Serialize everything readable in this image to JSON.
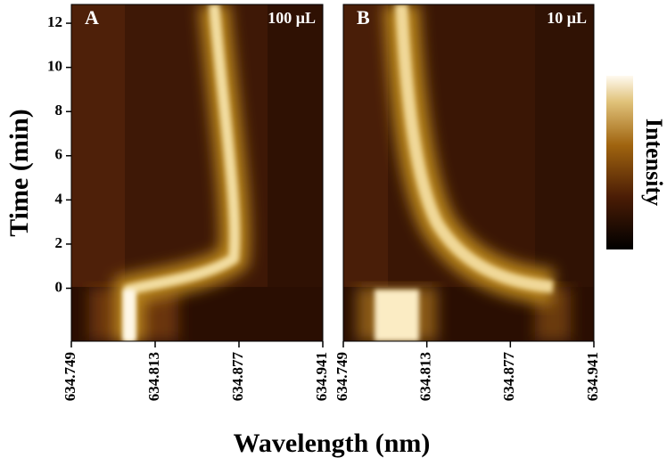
{
  "chart_data": [
    {
      "type": "heatmap",
      "title": "A",
      "annotation": "100 μL",
      "xlabel": "Wavelength (nm)",
      "ylabel": "Time (min)",
      "xlim": [
        634.749,
        634.941
      ],
      "xticks": [
        634.749,
        634.813,
        634.877,
        634.941
      ],
      "ylim": [
        -2.4,
        12.85
      ],
      "yticks": [
        0,
        2,
        4,
        6,
        8,
        10,
        12
      ]
    },
    {
      "type": "heatmap",
      "title": "B",
      "annotation": "10 μL",
      "xlim": [
        634.749,
        634.941
      ],
      "xticks": [
        634.749,
        634.813,
        634.877,
        634.941
      ],
      "ylim": [
        -2.4,
        12.85
      ],
      "colorbar": {
        "label": "Intensity"
      }
    }
  ]
}
